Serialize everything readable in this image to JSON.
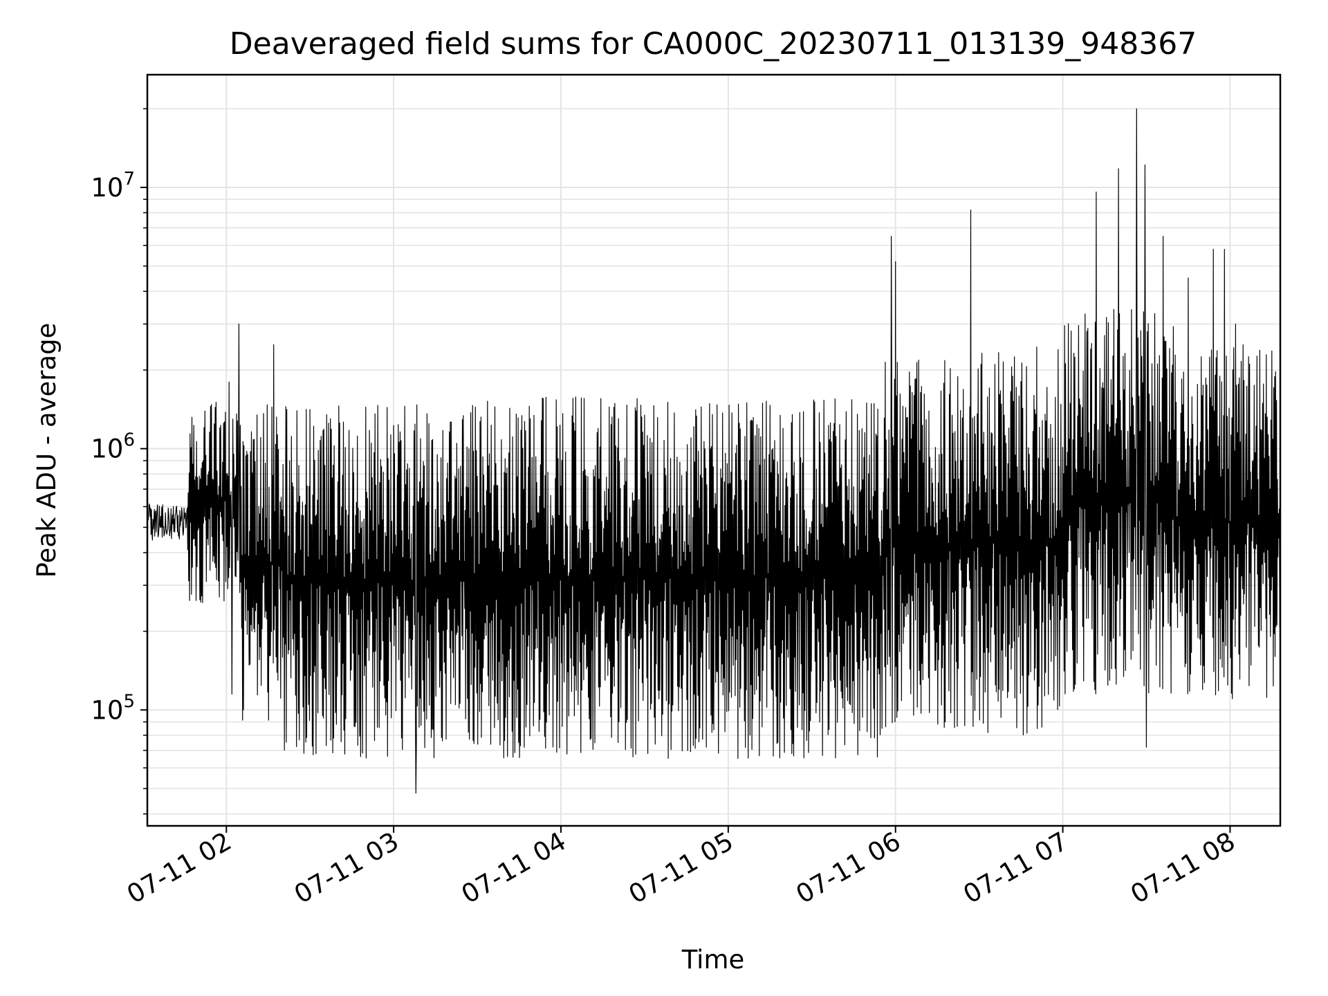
{
  "chart_data": {
    "type": "line",
    "title": "Deaveraged field sums for CA000C_20230711_013139_948367",
    "xlabel": "Time",
    "ylabel": "Peak ADU - average",
    "yscale": "log",
    "xlim": [
      "2023-07-11 01:31:39",
      "2023-07-11 08:18:00"
    ],
    "ylim": [
      36000,
      27000000
    ],
    "grid": true,
    "line_color": "#000000",
    "x_ticks": [
      "07-11 02",
      "07-11 03",
      "07-11 04",
      "07-11 05",
      "07-11 06",
      "07-11 07",
      "07-11 08"
    ],
    "y_ticks": [
      {
        "value": 100000,
        "base": "10",
        "exp": "5"
      },
      {
        "value": 1000000,
        "base": "10",
        "exp": "6"
      },
      {
        "value": 10000000,
        "base": "10",
        "exp": "7"
      }
    ],
    "series": [
      {
        "sampling": "one sample every 10 seconds",
        "segments": [
          {
            "start": "2023-07-11 01:31:39",
            "end": "2023-07-11 01:46:00",
            "floor": 380000,
            "ceil": 650000
          },
          {
            "start": "2023-07-11 01:46:00",
            "end": "2023-07-11 02:05:00",
            "floor": 250000,
            "ceil": 1600000
          },
          {
            "start": "2023-07-11 02:05:00",
            "end": "2023-07-11 02:20:00",
            "floor": 90000,
            "ceil": 1500000
          },
          {
            "start": "2023-07-11 02:20:00",
            "end": "2023-07-11 03:20:00",
            "floor": 65000,
            "ceil": 1500000
          },
          {
            "start": "2023-07-11 03:20:00",
            "end": "2023-07-11 05:55:00",
            "floor": 65000,
            "ceil": 1600000
          },
          {
            "start": "2023-07-11 05:55:00",
            "end": "2023-07-11 06:30:00",
            "floor": 85000,
            "ceil": 2200000
          },
          {
            "start": "2023-07-11 06:30:00",
            "end": "2023-07-11 07:00:00",
            "floor": 80000,
            "ceil": 2500000
          },
          {
            "start": "2023-07-11 07:00:00",
            "end": "2023-07-11 07:40:00",
            "floor": 110000,
            "ceil": 3500000
          },
          {
            "start": "2023-07-11 07:40:00",
            "end": "2023-07-11 08:18:00",
            "floor": 110000,
            "ceil": 2500000
          }
        ],
        "peaks": [
          {
            "x": "2023-07-11 02:01:00",
            "y": 1800000
          },
          {
            "x": "2023-07-11 02:04:30",
            "y": 3000000
          },
          {
            "x": "2023-07-11 02:17:00",
            "y": 2500000
          },
          {
            "x": "2023-07-11 02:02:00",
            "y": 115000
          },
          {
            "x": "2023-07-11 03:08:00",
            "y": 48000
          },
          {
            "x": "2023-07-11 05:58:30",
            "y": 6500000
          },
          {
            "x": "2023-07-11 06:00:00",
            "y": 5200000
          },
          {
            "x": "2023-07-11 06:27:00",
            "y": 8200000
          },
          {
            "x": "2023-07-11 07:12:00",
            "y": 9600000
          },
          {
            "x": "2023-07-11 07:20:00",
            "y": 11800000
          },
          {
            "x": "2023-07-11 07:26:30",
            "y": 20000000
          },
          {
            "x": "2023-07-11 07:29:30",
            "y": 12200000
          },
          {
            "x": "2023-07-11 07:36:00",
            "y": 6500000
          },
          {
            "x": "2023-07-11 07:45:00",
            "y": 4500000
          },
          {
            "x": "2023-07-11 07:54:00",
            "y": 5800000
          },
          {
            "x": "2023-07-11 07:58:00",
            "y": 5800000
          },
          {
            "x": "2023-07-11 08:02:00",
            "y": 3000000
          },
          {
            "x": "2023-07-11 07:30:00",
            "y": 72000
          }
        ]
      }
    ]
  }
}
